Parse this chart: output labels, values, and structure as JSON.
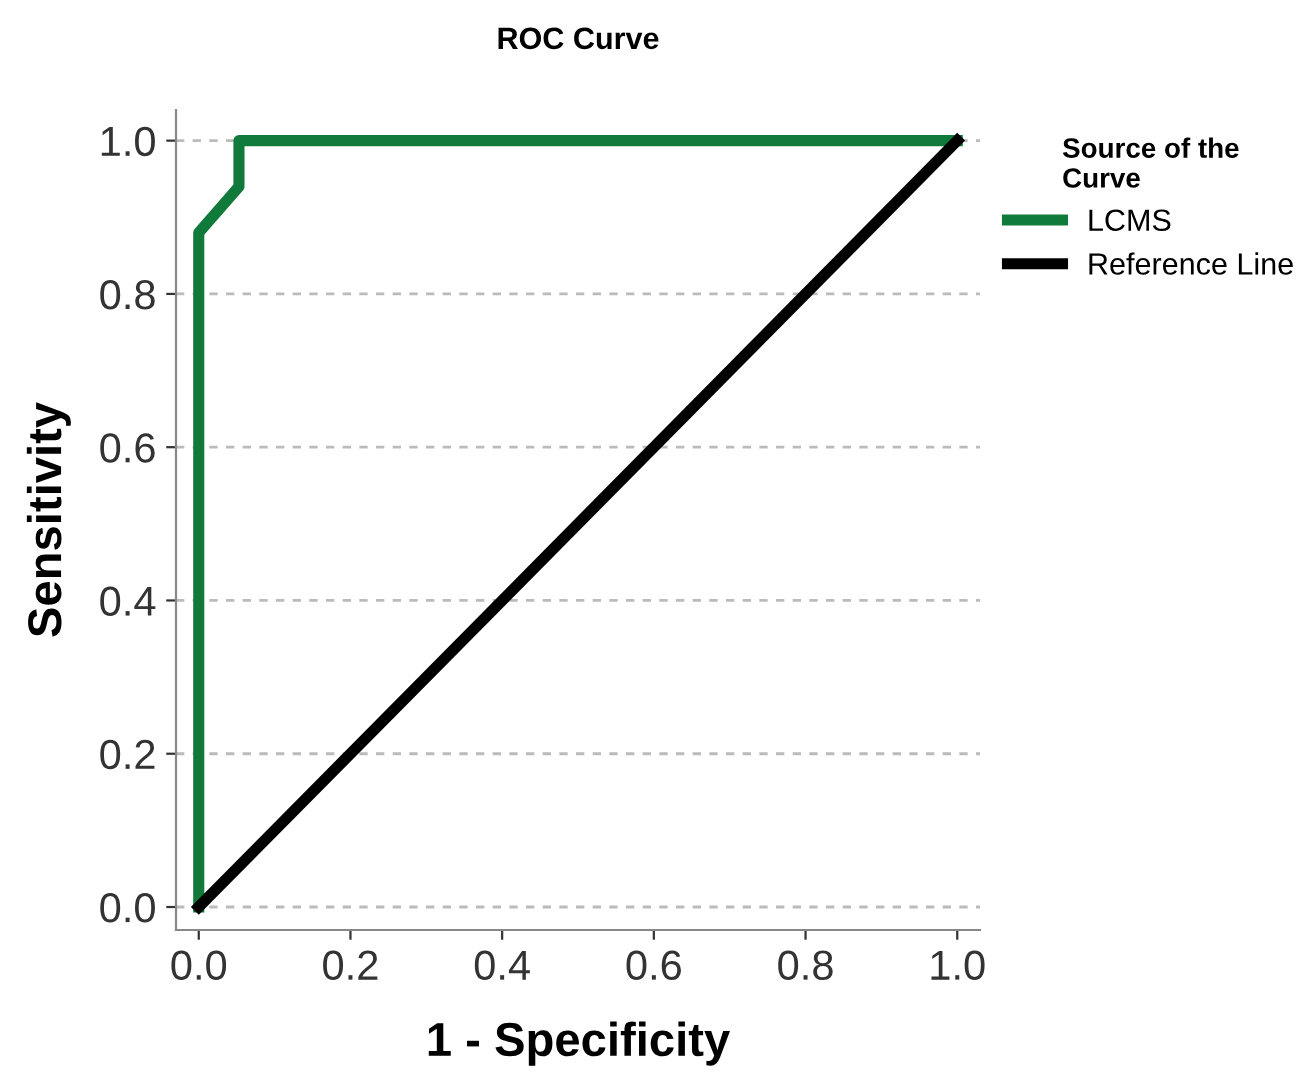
{
  "chart_data": {
    "type": "line",
    "title": "ROC Curve",
    "xlabel": "1 - Specificity",
    "ylabel": "Sensitivity",
    "legend_title": "Source of the\nCurve",
    "legend": "right",
    "series": [
      {
        "name": "LCMS",
        "color": "#107a3a",
        "x": [
          0,
          0,
          0.053,
          0.053,
          1
        ],
        "values": [
          0,
          0.88,
          0.94,
          1.0,
          1.0
        ]
      },
      {
        "name": "Reference Line",
        "color": "#000000",
        "x": [
          0,
          1
        ],
        "values": [
          0,
          1
        ]
      }
    ],
    "xlim": [
      -0.03,
      1.03
    ],
    "ylim": [
      -0.03,
      1.04
    ],
    "xticks": [
      {
        "value": 0,
        "label": "0.0"
      },
      {
        "value": 0.2,
        "label": "0.2"
      },
      {
        "value": 0.4,
        "label": "0.4"
      },
      {
        "value": 0.6,
        "label": "0.6"
      },
      {
        "value": 0.8,
        "label": "0.8"
      },
      {
        "value": 1,
        "label": "1.0"
      }
    ],
    "yticks": [
      {
        "value": 0,
        "label": "0.0"
      },
      {
        "value": 0.2,
        "label": "0.2"
      },
      {
        "value": 0.4,
        "label": "0.4"
      },
      {
        "value": 0.6,
        "label": "0.6"
      },
      {
        "value": 0.8,
        "label": "0.8"
      },
      {
        "value": 1,
        "label": "1.0"
      }
    ],
    "grid": "y",
    "line_style": "solid",
    "marker": "none"
  }
}
